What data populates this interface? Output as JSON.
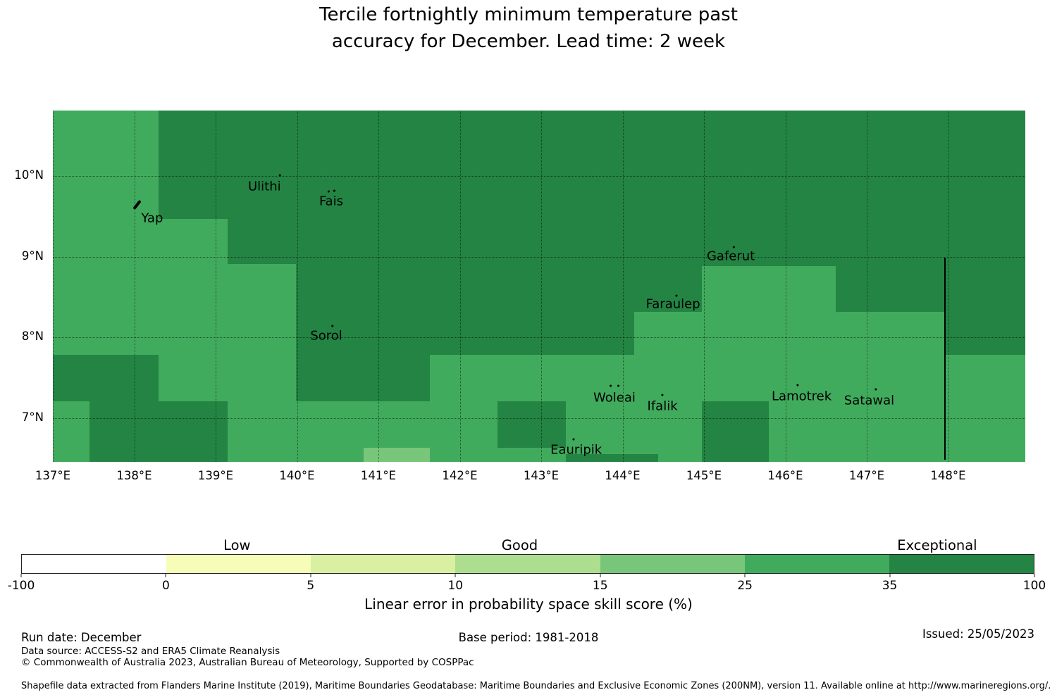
{
  "title": {
    "line1": "Tercile fortnightly minimum temperature past",
    "line2": "accuracy for December. Lead time: 2 week"
  },
  "footer": {
    "run_date": "Run date: December",
    "base_period": "Base period: 1981-2018",
    "issued": "Issued: 25/05/2023",
    "data_source": "Data source: ACCESS-S2 and ERA5 Climate Reanalysis",
    "copyright": "© Commonwealth of Australia 2023, Australian Bureau of Meteorology, Supported by COSPPac",
    "shapefile_note": "Shapefile data extracted from Flanders Marine Institute (2019), Maritime Boundaries Geodatabase: Maritime Boundaries and Exclusive Economic Zones (200NM), version 11. Available online at http://www.marineregions.org/."
  },
  "chart_data": {
    "type": "heatmap",
    "title": "Tercile fortnightly minimum temperature past accuracy for December. Lead time: 2 week",
    "map_extent": {
      "lon_min": 137.0,
      "lon_max": 148.95,
      "lat_min": 6.46,
      "lat_max": 10.812
    },
    "grid": {
      "x_gridlines": [
        137,
        138,
        139,
        140,
        141,
        142,
        143,
        144,
        145,
        146,
        147,
        148
      ],
      "y_gridlines": [
        7,
        8,
        9,
        10
      ],
      "style": "dotted"
    },
    "x_ticks": [
      {
        "label": "137°E",
        "lon": 137
      },
      {
        "label": "138°E",
        "lon": 138
      },
      {
        "label": "139°E",
        "lon": 139
      },
      {
        "label": "140°E",
        "lon": 140
      },
      {
        "label": "141°E",
        "lon": 141
      },
      {
        "label": "142°E",
        "lon": 142
      },
      {
        "label": "143°E",
        "lon": 143
      },
      {
        "label": "144°E",
        "lon": 144
      },
      {
        "label": "145°E",
        "lon": 145
      },
      {
        "label": "146°E",
        "lon": 146
      },
      {
        "label": "147°E",
        "lon": 147
      },
      {
        "label": "148°E",
        "lon": 148
      }
    ],
    "y_ticks": [
      {
        "label": "10°N",
        "lat": 10
      },
      {
        "label": "9°N",
        "lat": 9
      },
      {
        "label": "8°N",
        "lat": 8
      },
      {
        "label": "7°N",
        "lat": 7
      }
    ],
    "band_colors": {
      "15-25": "#78c679",
      "25-35": "#41ab5d",
      "35-100": "#238443"
    },
    "background_band": "25-35",
    "regions": [
      {
        "band": "35-100",
        "lon1": 138.3,
        "lon2": 139.15,
        "lat1": 9.47,
        "lat2": 10.812
      },
      {
        "band": "35-100",
        "lon1": 139.15,
        "lon2": 139.99,
        "lat1": 8.91,
        "lat2": 10.812
      },
      {
        "band": "35-100",
        "lon1": 139.99,
        "lon2": 141.63,
        "lat1": 7.21,
        "lat2": 10.812
      },
      {
        "band": "35-100",
        "lon1": 141.63,
        "lon2": 144.14,
        "lat1": 7.78,
        "lat2": 10.812
      },
      {
        "band": "35-100",
        "lon1": 144.14,
        "lon2": 144.97,
        "lat1": 8.32,
        "lat2": 10.812
      },
      {
        "band": "35-100",
        "lon1": 144.97,
        "lon2": 146.62,
        "lat1": 8.88,
        "lat2": 10.812
      },
      {
        "band": "35-100",
        "lon1": 146.62,
        "lon2": 147.96,
        "lat1": 8.32,
        "lat2": 10.812
      },
      {
        "band": "35-100",
        "lon1": 147.96,
        "lon2": 148.95,
        "lat1": 7.78,
        "lat2": 10.812
      },
      {
        "band": "35-100",
        "lon1": 137.0,
        "lon2": 138.3,
        "lat1": 7.21,
        "lat2": 7.78
      },
      {
        "band": "35-100",
        "lon1": 137.45,
        "lon2": 139.15,
        "lat1": 6.46,
        "lat2": 7.21
      },
      {
        "band": "35-100",
        "lon1": 142.46,
        "lon2": 143.3,
        "lat1": 6.63,
        "lat2": 7.21
      },
      {
        "band": "35-100",
        "lon1": 144.97,
        "lon2": 145.8,
        "lat1": 6.46,
        "lat2": 7.21
      },
      {
        "band": "35-100",
        "lon1": 143.3,
        "lon2": 144.44,
        "lat1": 6.46,
        "lat2": 6.55
      },
      {
        "band": "15-25",
        "lon1": 140.82,
        "lon2": 141.63,
        "lat1": 6.46,
        "lat2": 6.63
      }
    ],
    "islands": [
      {
        "name": "Ulithi",
        "lon": 139.6,
        "lat": 9.87,
        "dots": [
          [
            20,
            -17
          ]
        ]
      },
      {
        "name": "Fais",
        "lon": 140.42,
        "lat": 9.69,
        "dots": [
          [
            -5,
            -15
          ],
          [
            3,
            -16
          ]
        ]
      },
      {
        "name": "Yap",
        "lon": 138.22,
        "lat": 9.48,
        "shape": "yap"
      },
      {
        "name": "Gaferut",
        "lon": 145.33,
        "lat": 9.01,
        "dots": [
          [
            3,
            -14
          ]
        ]
      },
      {
        "name": "Faraulep",
        "lon": 144.62,
        "lat": 8.41,
        "dots": [
          [
            3,
            -14
          ]
        ]
      },
      {
        "name": "Sorol",
        "lon": 140.36,
        "lat": 8.02,
        "dots": [
          [
            7,
            -15
          ]
        ]
      },
      {
        "name": "Woleai",
        "lon": 143.9,
        "lat": 7.25,
        "dots": [
          [
            -7,
            -19
          ],
          [
            4,
            -19
          ]
        ]
      },
      {
        "name": "Ifalik",
        "lon": 144.49,
        "lat": 7.15,
        "dots": [
          [
            -2,
            -17
          ]
        ]
      },
      {
        "name": "Lamotrek",
        "lon": 146.2,
        "lat": 7.27,
        "dots": [
          [
            -7,
            -17
          ]
        ]
      },
      {
        "name": "Satawal",
        "lon": 147.03,
        "lat": 7.22,
        "dots": [
          [
            8,
            -17
          ]
        ]
      },
      {
        "name": "Eauripik",
        "lon": 143.43,
        "lat": 6.61,
        "dots": [
          [
            -5,
            -16
          ]
        ]
      }
    ],
    "eez_line": {
      "lon": 147.96,
      "lat_from": 8.99,
      "lat_to": 6.48,
      "color": "#000000"
    },
    "colorbar": {
      "tick_labels": [
        "-100",
        "0",
        "5",
        "10",
        "15",
        "25",
        "35",
        "100"
      ],
      "segment_colors": [
        "#ffffff",
        "#f7fcb9",
        "#d9f0a3",
        "#addd8e",
        "#78c679",
        "#41ab5d",
        "#238443"
      ],
      "categories": [
        {
          "label": "Low",
          "position_pct": 21.3
        },
        {
          "label": "Good",
          "position_pct": 49.2
        },
        {
          "label": "Exceptional",
          "position_pct": 90.4
        }
      ],
      "axis_label": "Linear error in probability space skill score (%)"
    }
  }
}
